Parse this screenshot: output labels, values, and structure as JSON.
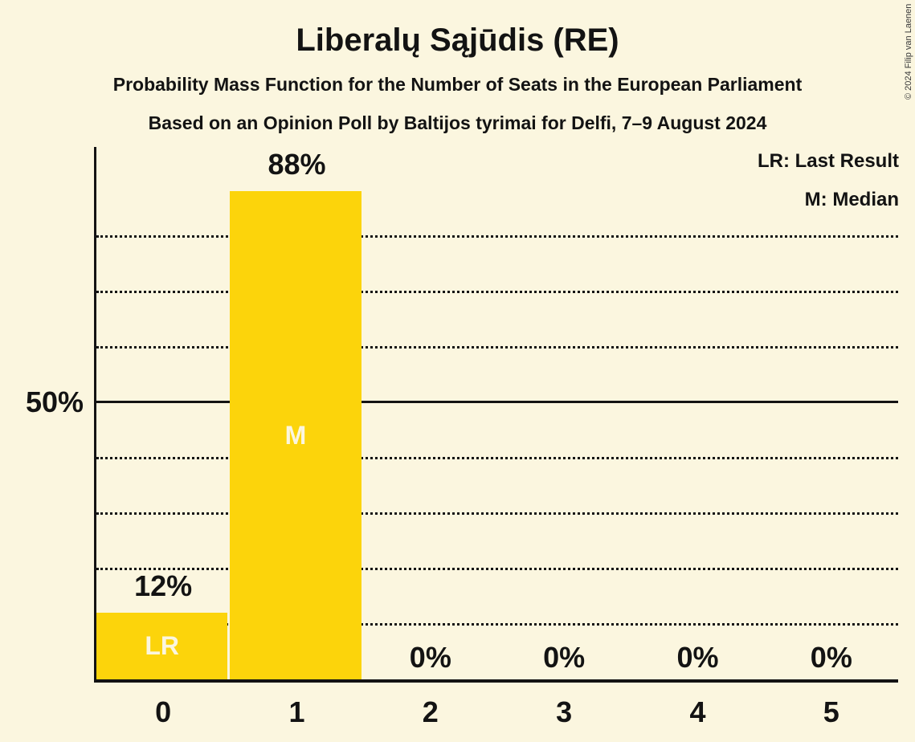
{
  "page": {
    "background_color": "#FBF6DF",
    "text_color": "#131313",
    "copyright": "© 2024 Filip van Laenen"
  },
  "header": {
    "title": "Liberalų Sąjūdis (RE)",
    "subtitle_line1": "Probability Mass Function for the Number of Seats in the European Parliament",
    "subtitle_line2": "Based on an Opinion Poll by Baltijos tyrimai for Delfi, 7–9 August 2024"
  },
  "legend": {
    "last_result": "LR: Last Result",
    "median": "M: Median"
  },
  "chart_data": {
    "type": "bar",
    "title": "Liberalų Sąjūdis (RE)",
    "categories": [
      "0",
      "1",
      "2",
      "3",
      "4",
      "5"
    ],
    "values": [
      12,
      88,
      0,
      0,
      0,
      0
    ],
    "bar_value_labels": [
      "12%",
      "88%",
      "0%",
      "0%",
      "0%",
      "0%"
    ],
    "markers": [
      {
        "index": 0,
        "label": "LR"
      },
      {
        "index": 1,
        "label": "M"
      }
    ],
    "y_axis": {
      "tick_value": 50,
      "tick_label": "50%",
      "dotted_gridlines_pct": [
        10,
        20,
        30,
        40,
        60,
        70,
        80
      ],
      "solid_gridline_pct": 50,
      "ylim": [
        0,
        96
      ]
    },
    "xlabel": "",
    "ylabel": "",
    "legend_position": "top-right",
    "grid": "dotted-horizontal",
    "bar_color": "#FCD40B",
    "in_bar_label_color": "#FBF6DF",
    "axis_color": "#131313"
  }
}
